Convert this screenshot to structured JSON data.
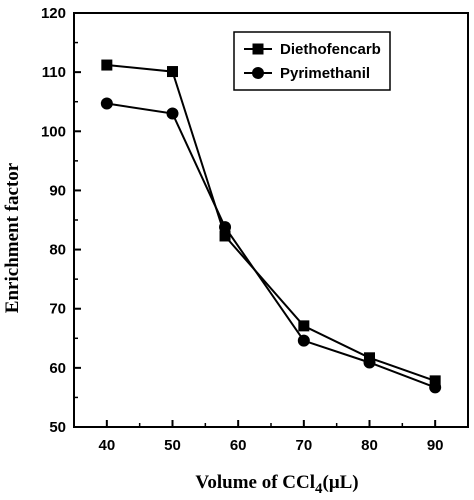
{
  "chart_data": {
    "type": "line",
    "title": "",
    "xlabel": "Volume of CCl",
    "xlabel_subscript": "4",
    "xlabel_unit": "(μL)",
    "ylabel": "Enrichment factor",
    "xlim": [
      35,
      95
    ],
    "ylim": [
      50,
      120
    ],
    "x_ticks": [
      40,
      50,
      60,
      70,
      80,
      90
    ],
    "y_ticks": [
      50,
      60,
      70,
      80,
      90,
      100,
      110,
      120
    ],
    "grid": false,
    "legend_position": "top-right",
    "series": [
      {
        "name": "Diethofencarb",
        "marker": "square",
        "color": "#000000",
        "x": [
          40,
          50,
          58,
          70,
          80,
          90
        ],
        "y": [
          111.2,
          110.1,
          82.3,
          67.1,
          61.7,
          57.8
        ]
      },
      {
        "name": "Pyrimethanil",
        "marker": "circle",
        "color": "#000000",
        "x": [
          40,
          50,
          58,
          70,
          80,
          90
        ],
        "y": [
          104.7,
          103.0,
          83.8,
          64.6,
          60.9,
          56.7
        ]
      }
    ]
  }
}
